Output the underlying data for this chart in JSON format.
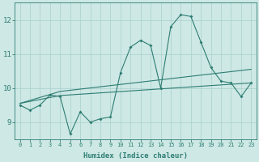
{
  "xlabel": "Humidex (Indice chaleur)",
  "bg_color": "#cde8e5",
  "grid_color": "#aed4d0",
  "line_color": "#2e7d72",
  "xlim": [
    -0.5,
    23.5
  ],
  "ylim": [
    8.5,
    12.5
  ],
  "yticks": [
    9,
    10,
    11,
    12
  ],
  "xticks": [
    0,
    1,
    2,
    3,
    4,
    5,
    6,
    7,
    8,
    9,
    10,
    11,
    12,
    13,
    14,
    15,
    16,
    17,
    18,
    19,
    20,
    21,
    22,
    23
  ],
  "main_x": [
    0,
    1,
    2,
    3,
    4,
    5,
    6,
    7,
    8,
    9,
    10,
    11,
    12,
    13,
    14,
    15,
    16,
    17,
    18,
    19,
    20,
    21,
    22,
    23
  ],
  "main_y": [
    9.5,
    9.35,
    9.5,
    9.8,
    9.75,
    8.65,
    9.3,
    9.0,
    9.1,
    9.15,
    10.45,
    11.2,
    11.4,
    11.25,
    10.0,
    11.8,
    12.15,
    12.1,
    11.35,
    10.6,
    10.2,
    10.15,
    9.75,
    10.15
  ],
  "line2_x": [
    0,
    4,
    23
  ],
  "line2_y": [
    9.55,
    9.78,
    10.15
  ],
  "line3_x": [
    0,
    4,
    23
  ],
  "line3_y": [
    9.55,
    9.9,
    10.55
  ]
}
